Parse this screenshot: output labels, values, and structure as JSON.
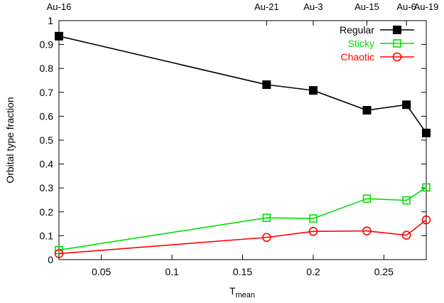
{
  "chart_data": {
    "type": "line",
    "title": "",
    "xlabel": "T",
    "xlabel_sub": "mean",
    "ylabel": "Orbital type fraction",
    "xlim": [
      0.02,
      0.28
    ],
    "ylim": [
      0,
      1
    ],
    "x_ticks": [
      0.05,
      0.1,
      0.15,
      0.2,
      0.25
    ],
    "x_tick_labels": [
      "0.05",
      "0.1",
      "0.15",
      "0.2",
      "0.25"
    ],
    "y_ticks": [
      0,
      0.1,
      0.2,
      0.3,
      0.4,
      0.5,
      0.6,
      0.7,
      0.8,
      0.9,
      1
    ],
    "y_tick_labels": [
      "0",
      "0.1",
      "0.2",
      "0.3",
      "0.4",
      "0.5",
      "0.6",
      "0.7",
      "0.8",
      "0.9",
      "1"
    ],
    "top_labels": [
      {
        "text": "Au-16",
        "x": 0.02
      },
      {
        "text": "Au-21",
        "x": 0.167
      },
      {
        "text": "Au-3",
        "x": 0.2
      },
      {
        "text": "Au-15",
        "x": 0.238
      },
      {
        "text": "Au-6",
        "x": 0.266
      },
      {
        "text": "Au-19",
        "x": 0.28
      }
    ],
    "x": [
      0.02,
      0.167,
      0.2,
      0.238,
      0.266,
      0.28
    ],
    "series": [
      {
        "name": "Regular",
        "color": "#000000",
        "marker": "filled-square",
        "values": [
          0.935,
          0.732,
          0.708,
          0.625,
          0.648,
          0.53
        ]
      },
      {
        "name": "Sticky",
        "color": "#00e000",
        "marker": "open-square",
        "values": [
          0.04,
          0.175,
          0.172,
          0.255,
          0.248,
          0.302
        ]
      },
      {
        "name": "Chaotic",
        "color": "#ff0000",
        "marker": "open-circle",
        "values": [
          0.025,
          0.093,
          0.118,
          0.12,
          0.102,
          0.166
        ]
      }
    ],
    "grid": false,
    "legend_position": "top-right"
  }
}
